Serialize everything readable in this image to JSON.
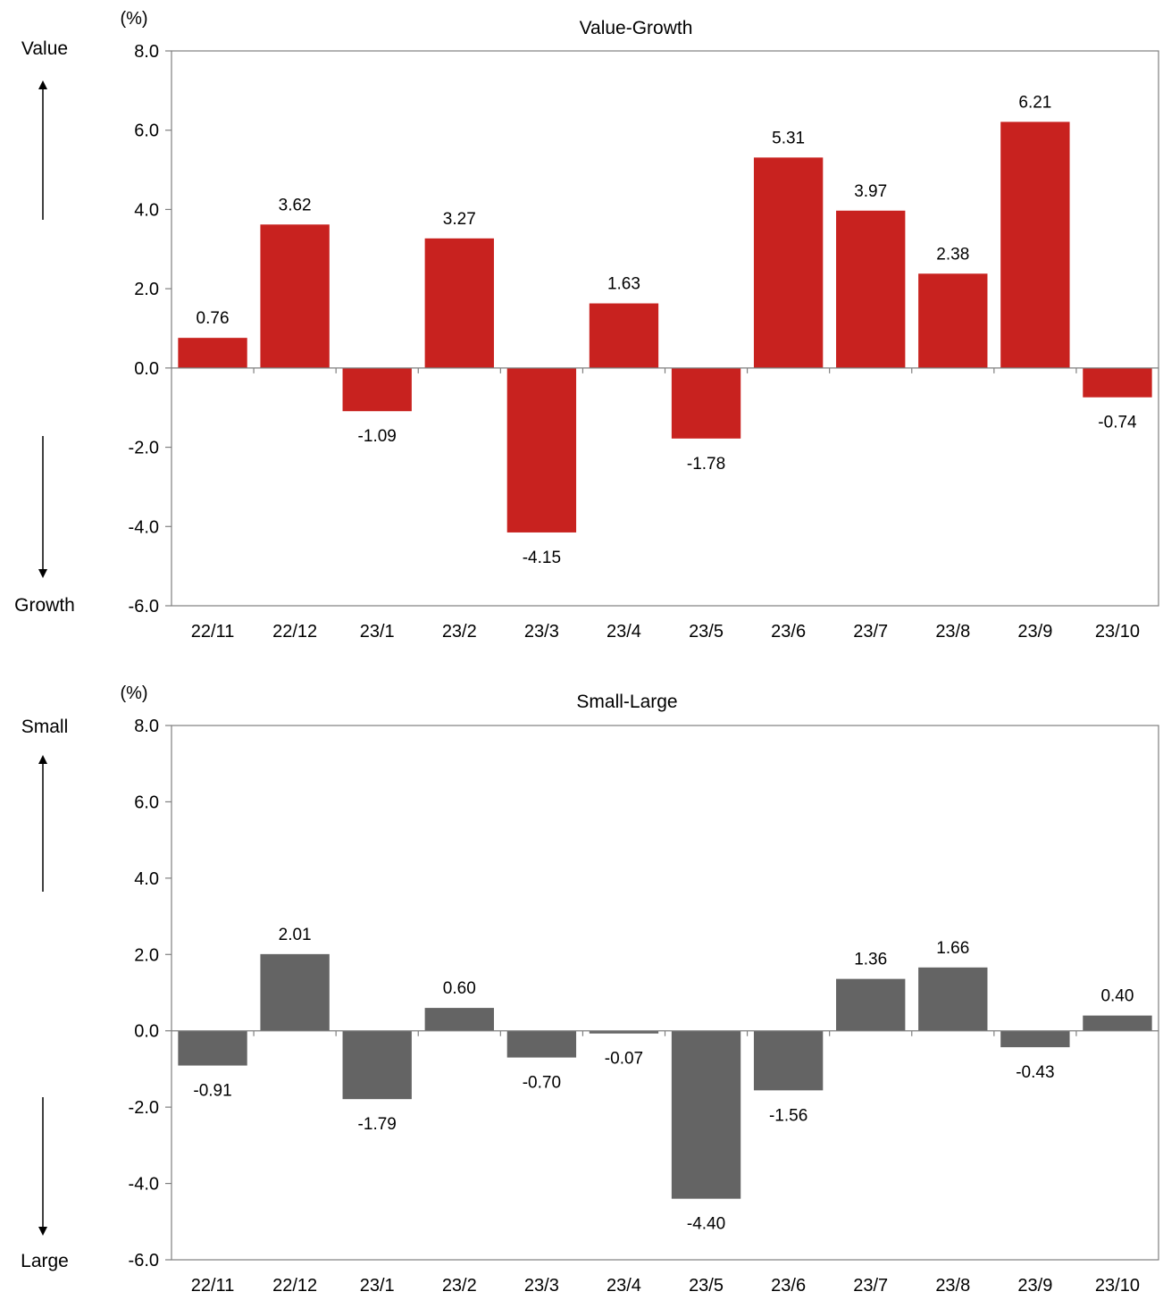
{
  "chart_data": [
    {
      "type": "bar",
      "title": "Value-Growth",
      "unit_label": "(%)",
      "top_direction_label": "Value",
      "bottom_direction_label": "Growth",
      "categories": [
        "22/11",
        "22/12",
        "23/1",
        "23/2",
        "23/3",
        "23/4",
        "23/5",
        "23/6",
        "23/7",
        "23/8",
        "23/9",
        "23/10"
      ],
      "values": [
        0.76,
        3.62,
        -1.09,
        3.27,
        -4.15,
        1.63,
        -1.78,
        5.31,
        3.97,
        2.38,
        6.21,
        -0.74
      ],
      "value_labels": [
        "0.76",
        "3.62",
        "-1.09",
        "3.27",
        "-4.15",
        "1.63",
        "-1.78",
        "5.31",
        "3.97",
        "2.38",
        "6.21",
        "-0.74"
      ],
      "ylim": [
        -6,
        8
      ],
      "yticks": [
        -6,
        -4,
        -2,
        0,
        2,
        4,
        6,
        8
      ],
      "ytick_labels": [
        "-6.0",
        "-4.0",
        "-2.0",
        "0.0",
        "2.0",
        "4.0",
        "6.0",
        "8.0"
      ],
      "bar_color": "#c8221f",
      "grid": false,
      "legend": "none"
    },
    {
      "type": "bar",
      "title": "Small-Large",
      "unit_label": "(%)",
      "top_direction_label": "Small",
      "bottom_direction_label": "Large",
      "categories": [
        "22/11",
        "22/12",
        "23/1",
        "23/2",
        "23/3",
        "23/4",
        "23/5",
        "23/6",
        "23/7",
        "23/8",
        "23/9",
        "23/10"
      ],
      "values": [
        -0.91,
        2.01,
        -1.79,
        0.6,
        -0.7,
        -0.07,
        -4.4,
        -1.56,
        1.36,
        1.66,
        -0.43,
        0.4
      ],
      "value_labels": [
        "-0.91",
        "2.01",
        "-1.79",
        "0.60",
        "-0.70",
        "-0.07",
        "-4.40",
        "-1.56",
        "1.36",
        "1.66",
        "-0.43",
        "0.40"
      ],
      "ylim": [
        -6,
        8
      ],
      "yticks": [
        -6,
        -4,
        -2,
        0,
        2,
        4,
        6,
        8
      ],
      "ytick_labels": [
        "-6.0",
        "-4.0",
        "-2.0",
        "0.0",
        "2.0",
        "4.0",
        "6.0",
        "8.0"
      ],
      "bar_color": "#646464",
      "grid": false,
      "legend": "none"
    }
  ]
}
